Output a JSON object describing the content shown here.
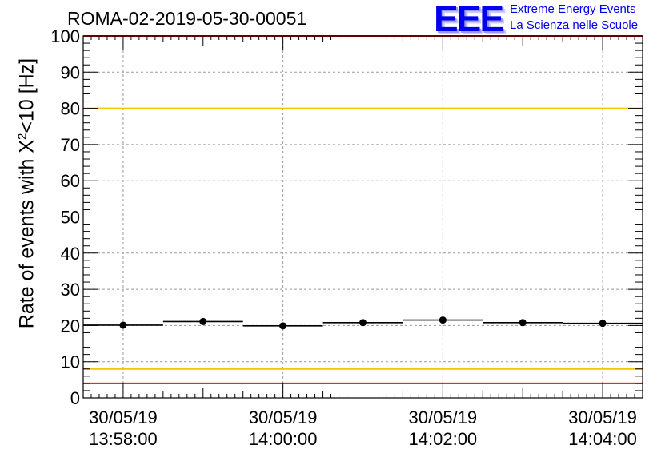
{
  "chart_data": {
    "type": "scatter",
    "title": "ROMA-02-2019-05-30-00051",
    "ylabel_prefix": "Rate of events with X",
    "ylabel_sup": "2",
    "ylabel_suffix": "<10 [Hz]",
    "ylim": [
      0,
      100
    ],
    "yticks": [
      "0",
      "10",
      "20",
      "30",
      "40",
      "50",
      "60",
      "70",
      "80",
      "90",
      "100"
    ],
    "xticks": [
      {
        "date": "30/05/19",
        "time": "13:58:00",
        "minute": 0
      },
      {
        "date": "30/05/19",
        "time": "14:00:00",
        "minute": 2
      },
      {
        "date": "30/05/19",
        "time": "14:02:00",
        "minute": 4
      },
      {
        "date": "30/05/19",
        "time": "14:04:00",
        "minute": 6
      }
    ],
    "xlim_minutes": [
      -0.5,
      6.5
    ],
    "grid": true,
    "reference_lines": [
      {
        "value": 100,
        "color": "#ff0000"
      },
      {
        "value": 80,
        "color": "#f2c800"
      },
      {
        "value": 8,
        "color": "#f2c800"
      },
      {
        "value": 4,
        "color": "#ff0000"
      }
    ],
    "series": [
      {
        "color": "#000000",
        "points": [
          {
            "minute": 0,
            "y": 20.1
          },
          {
            "minute": 1,
            "y": 21.1
          },
          {
            "minute": 2,
            "y": 19.9
          },
          {
            "minute": 3,
            "y": 20.8
          },
          {
            "minute": 4,
            "y": 21.5
          },
          {
            "minute": 5,
            "y": 20.8
          },
          {
            "minute": 6,
            "y": 20.6
          }
        ]
      }
    ]
  },
  "logo": {
    "mark": "EEE",
    "line1": "Extreme Energy Events",
    "line2": "La Scienza nelle Scuole"
  }
}
